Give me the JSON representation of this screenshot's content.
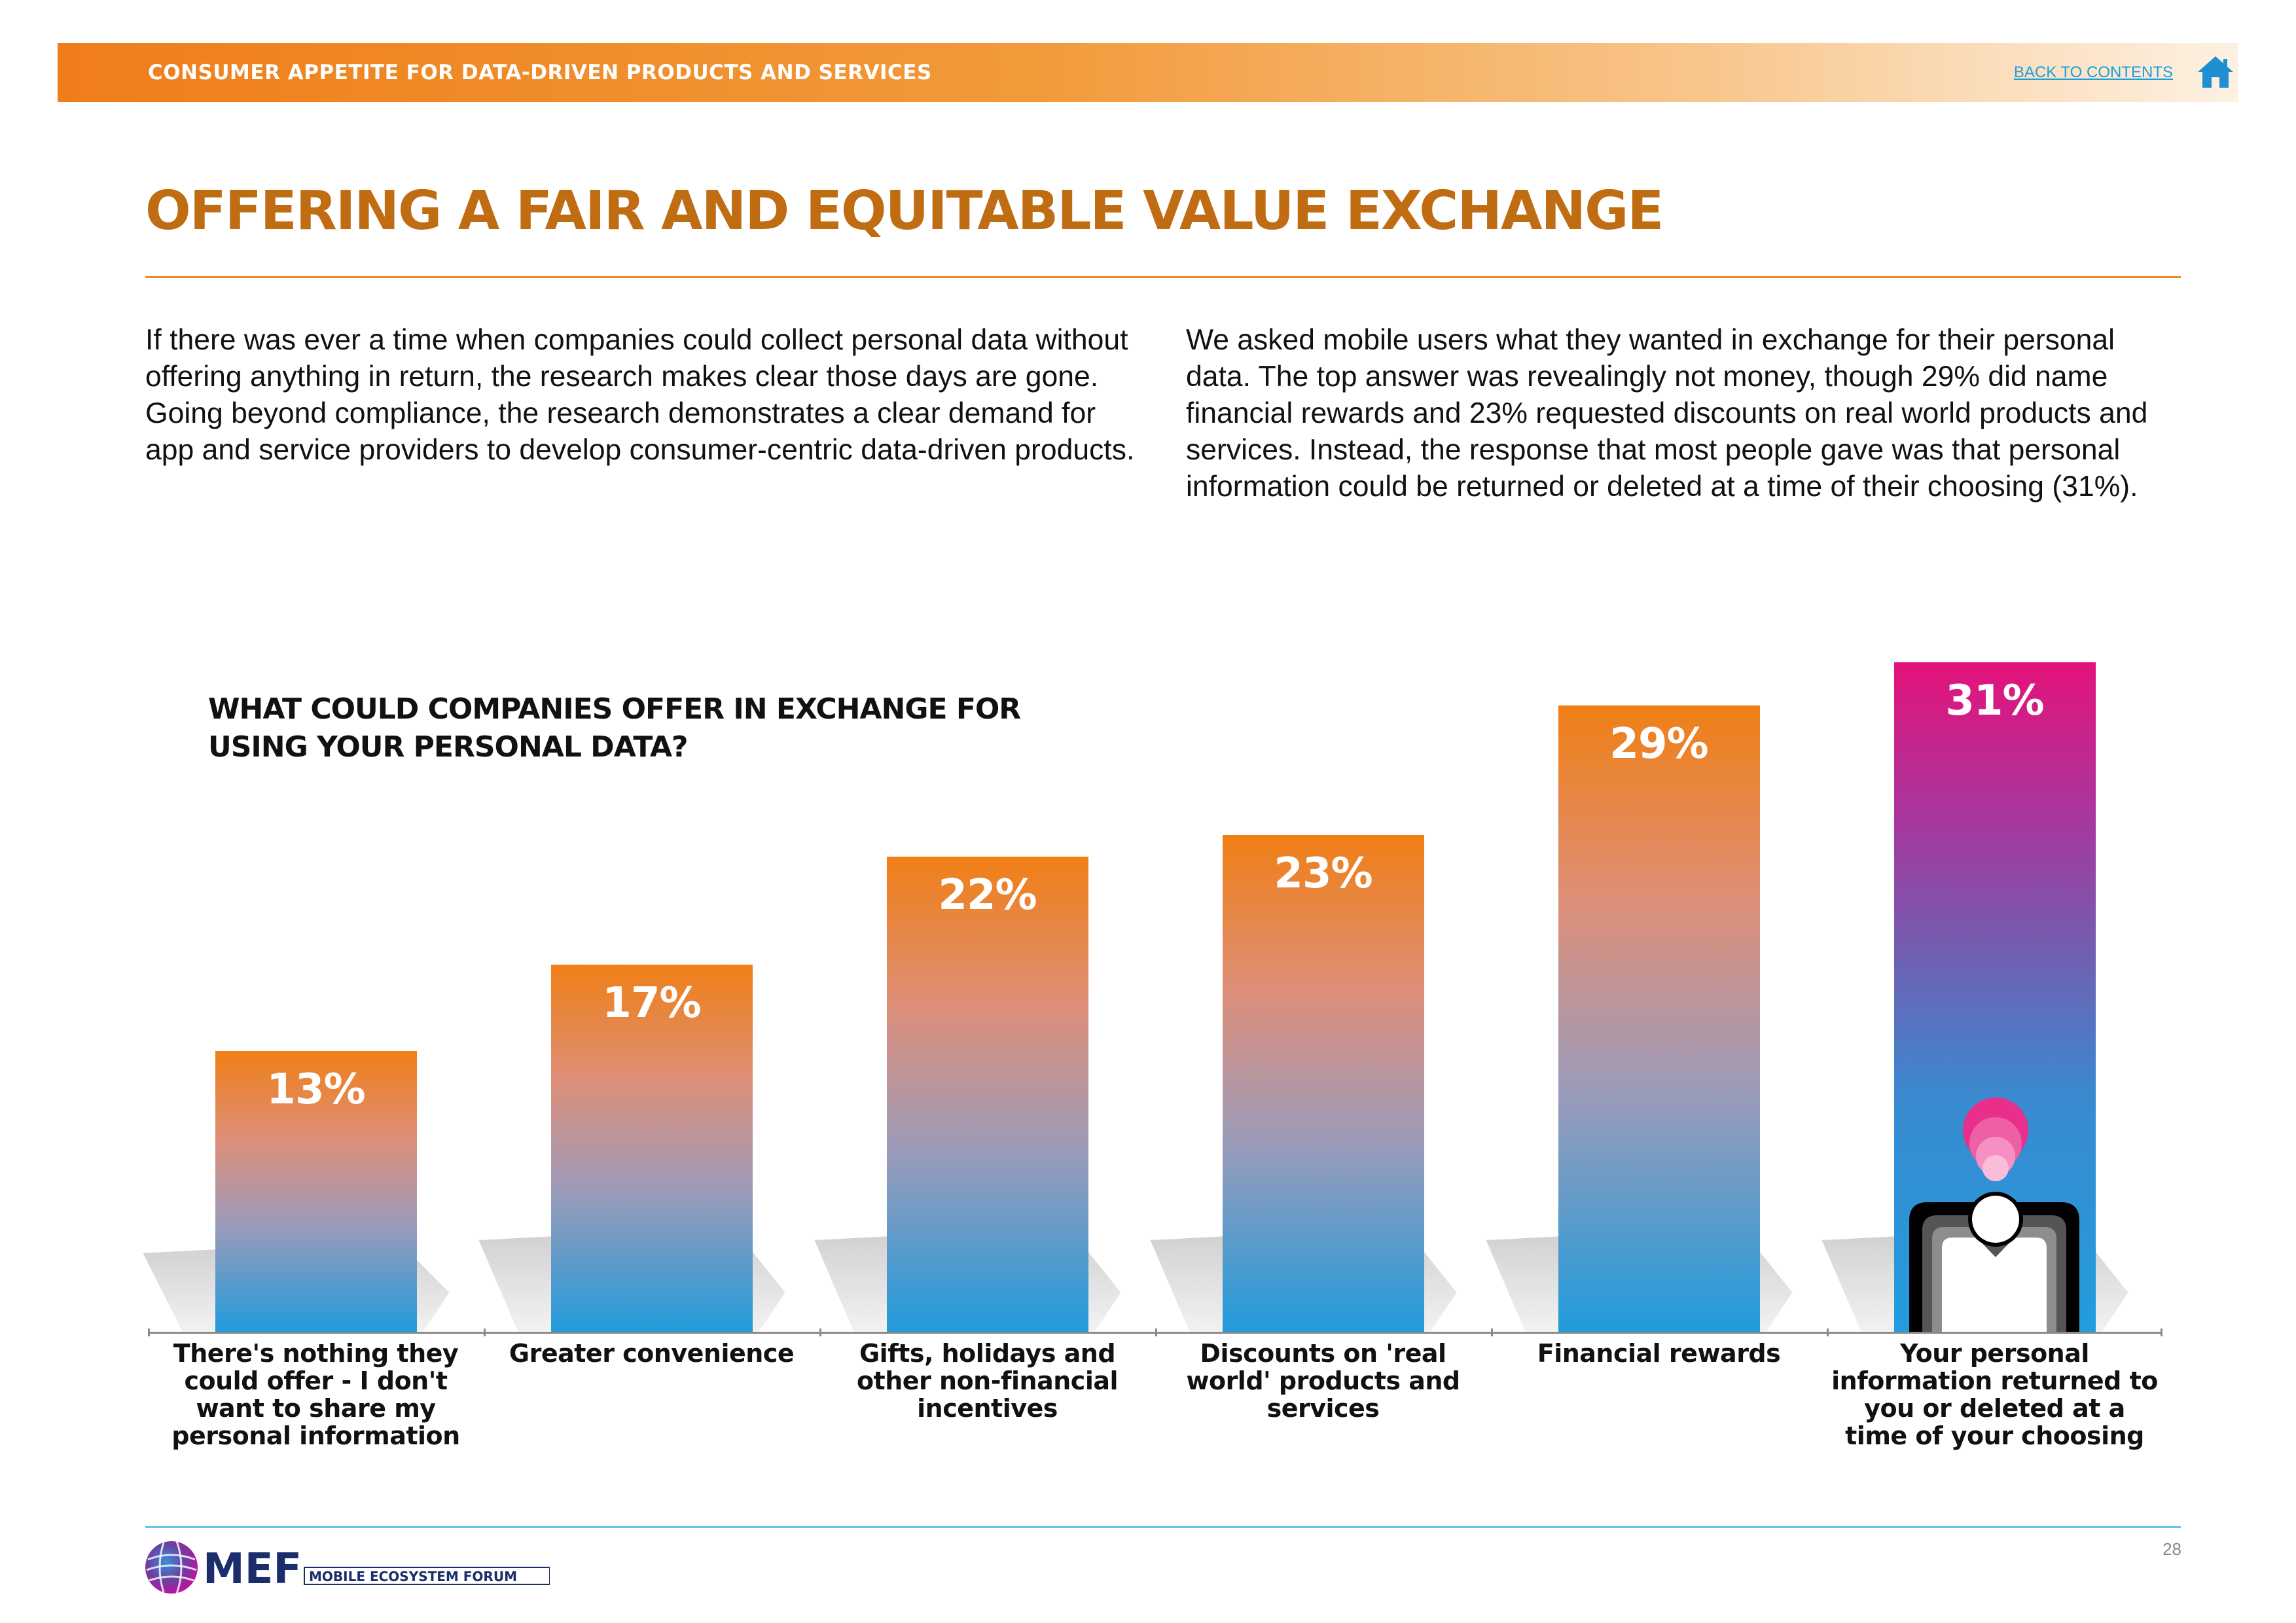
{
  "header": {
    "section_title": "CONSUMER APPETITE FOR DATA-DRIVEN PRODUCTS AND SERVICES",
    "back_link": "BACK TO CONTENTS",
    "home_icon": "home-icon"
  },
  "page": {
    "title": "OFFERING A FAIR AND EQUITABLE VALUE EXCHANGE",
    "paragraph_left": "If there was ever a time when companies could collect personal data without offering anything in return, the research makes clear those days are gone. Going beyond compliance, the research demonstrates a clear demand for app and service providers to develop consumer-centric data-driven products.",
    "paragraph_right": "We asked mobile users what they wanted in exchange for their personal data. The top answer was revealingly not money, though 29% did name financial rewards and 23% requested discounts on real world products and services. Instead, the response that most people gave was that personal information could be returned or deleted at a time of their choosing (31%)."
  },
  "chart_data": {
    "type": "bar",
    "title": "WHAT COULD COMPANIES OFFER IN EXCHANGE FOR USING YOUR PERSONAL DATA?",
    "categories": [
      "There's nothing they could offer - I don't want to share my personal information",
      "Greater convenience",
      "Gifts, holidays and other non-financial incentives",
      "Discounts on 'real world' products and services",
      "Financial rewards",
      "Your personal information returned to you or deleted at a time of your choosing"
    ],
    "values": [
      13,
      17,
      22,
      23,
      29,
      31
    ],
    "value_labels": [
      "13%",
      "17%",
      "22%",
      "23%",
      "29%",
      "31%"
    ],
    "unit": "%",
    "highlighted_category_index": 5,
    "colors": {
      "bar_top": "#f07f16",
      "bar_bottom": "#219bdb",
      "highlight_top": "#e4127b",
      "highlight_bottom": "#219ddd"
    }
  },
  "footer": {
    "logo_text": "MEF",
    "logo_subtext": "MOBILE ECOSYSTEM FORUM",
    "page_number": "28"
  }
}
